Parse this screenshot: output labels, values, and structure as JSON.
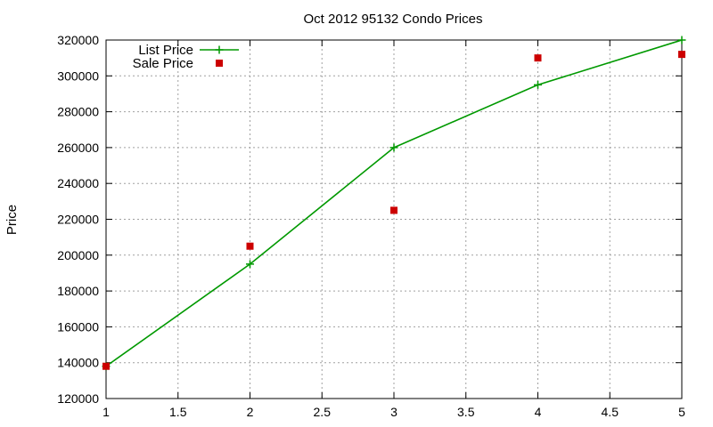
{
  "chart_data": {
    "type": "line",
    "title": "Oct 2012 95132 Condo Prices",
    "xlabel": "",
    "ylabel": "Price",
    "xlim": [
      1,
      5
    ],
    "ylim": [
      120000,
      320000
    ],
    "x_ticks": [
      "1",
      "1.5",
      "2",
      "2.5",
      "3",
      "3.5",
      "4",
      "4.5",
      "5"
    ],
    "y_ticks": [
      "120000",
      "140000",
      "160000",
      "180000",
      "200000",
      "220000",
      "240000",
      "260000",
      "280000",
      "300000",
      "320000"
    ],
    "grid": true,
    "legend_position": "top-left",
    "series": [
      {
        "name": "List Price",
        "style": "linespoints",
        "marker": "plus",
        "color": "#009900",
        "x": [
          1,
          2,
          3,
          4,
          5
        ],
        "y": [
          138000,
          195000,
          260000,
          295000,
          320000
        ]
      },
      {
        "name": "Sale Price",
        "style": "points",
        "marker": "square",
        "color": "#cc0000",
        "x": [
          1,
          2,
          3,
          4,
          5
        ],
        "y": [
          138000,
          205000,
          225000,
          310000,
          312000
        ]
      }
    ]
  }
}
